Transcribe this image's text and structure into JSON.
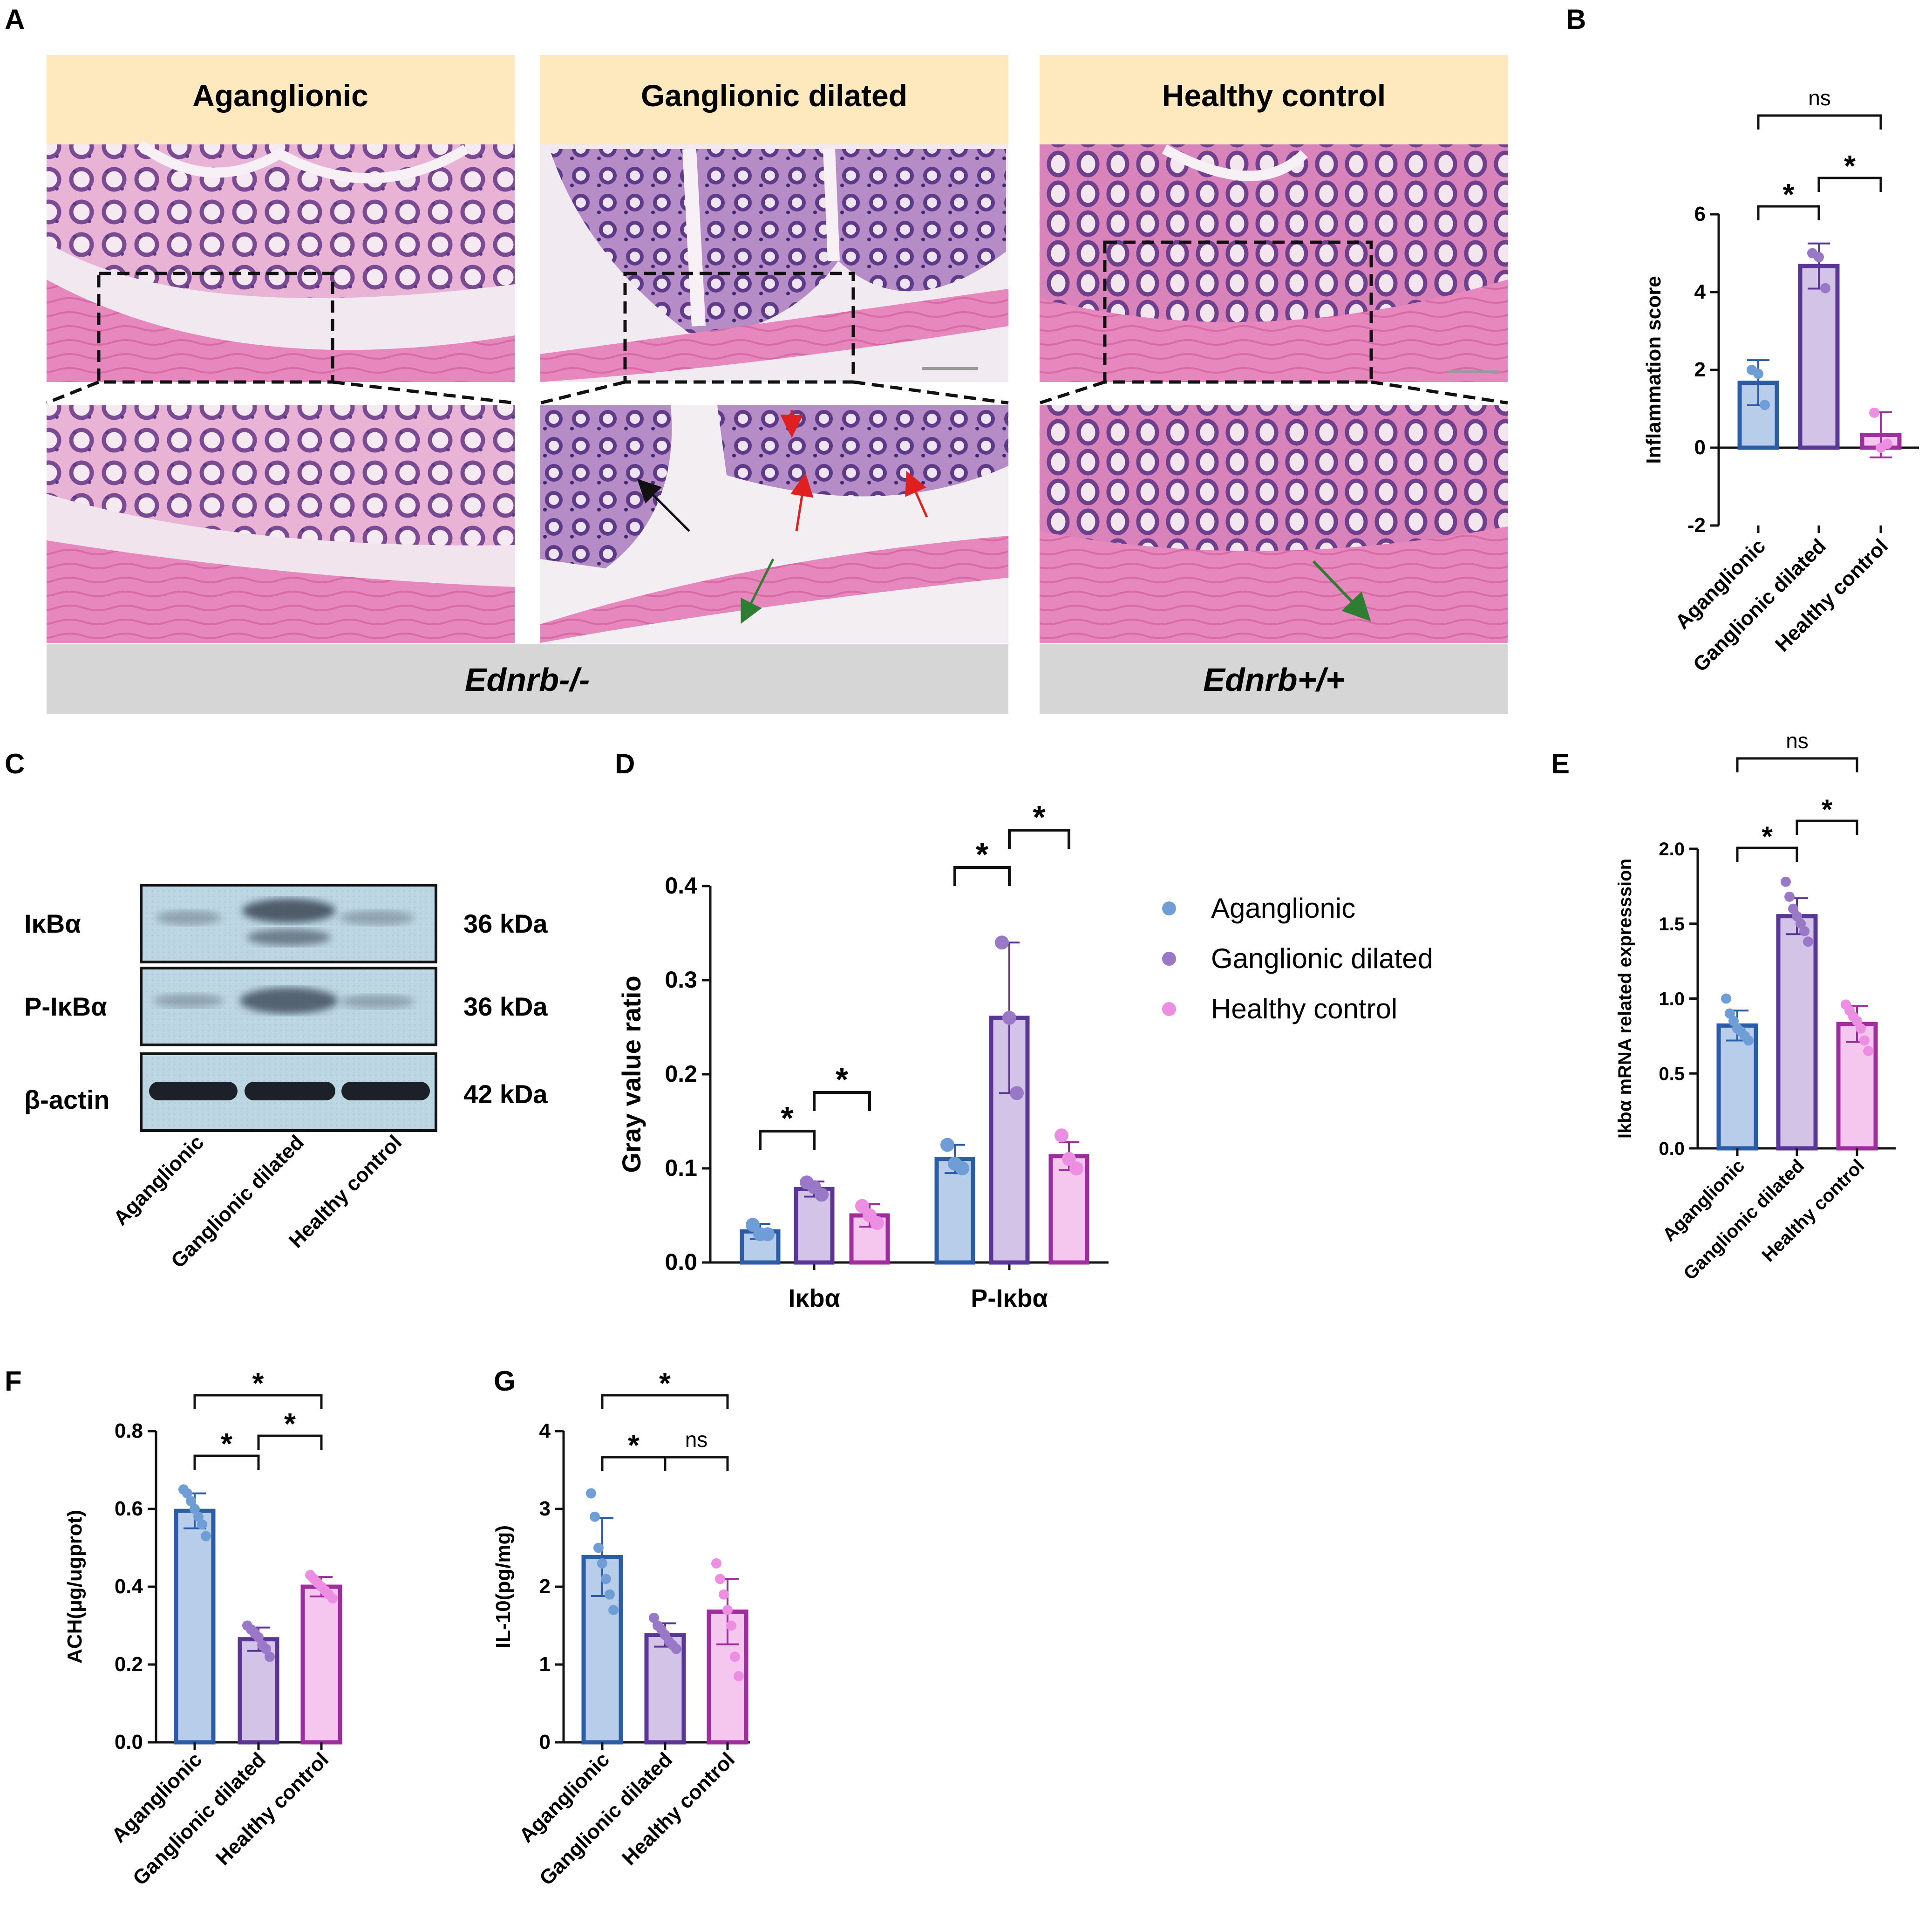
{
  "panels": {
    "A": "A",
    "B": "B",
    "C": "C",
    "D": "D",
    "E": "E",
    "F": "F",
    "G": "G"
  },
  "histology": {
    "headers": [
      "Aganglionic",
      "Ganglionic dilated",
      "Healthy control"
    ],
    "footers": [
      "Ednrb-/-",
      "Ednrb+/+"
    ],
    "colors": {
      "tissue_pink": "#e37fb4",
      "tissue_purple": "#8a5a9e",
      "lumen": "#f4eef2",
      "red_arrow": "#e02020",
      "green_arrow": "#2e7d32",
      "black_arrow": "#111111"
    }
  },
  "western_blot": {
    "rows": [
      {
        "label": "IκBα",
        "kda": "36 kDa"
      },
      {
        "label": "P-IκBα",
        "kda": "36 kDa"
      },
      {
        "label": "β-actin",
        "kda": "42 kDa"
      }
    ],
    "lanes": [
      "Aganglionic",
      "Ganglionic dilated",
      "Healthy control"
    ],
    "blot_bg": "#b9d4e0"
  },
  "legend": {
    "items": [
      {
        "name": "Aganglionic",
        "color": "#6f9ed6"
      },
      {
        "name": "Ganglionic dilated",
        "color": "#9a78c8"
      },
      {
        "name": "Healthy control",
        "color": "#ec8fe3"
      }
    ]
  },
  "colors": {
    "agang_fill": "#b8cde9",
    "agang_edge": "#2a5ca8",
    "agang_dot": "#6f9ed6",
    "gang_fill": "#d2c3e7",
    "gang_edge": "#5a3696",
    "gang_dot": "#9a78c8",
    "healthy_fill": "#f5c7ef",
    "healthy_edge": "#a02d9e",
    "healthy_dot": "#ec8fe3"
  },
  "chart_data": [
    {
      "panel": "B",
      "type": "bar",
      "categories": [
        "Aganglionic",
        "Ganglionic dilated",
        "Healthy control"
      ],
      "values": [
        1.67,
        4.67,
        0.33
      ],
      "errors": [
        0.58,
        0.58,
        0.58
      ],
      "points": [
        [
          2,
          1.9,
          1.1
        ],
        [
          5.0,
          4.9,
          4.1
        ],
        [
          0.9,
          0.0,
          0.1
        ]
      ],
      "ylabel": "Inflammation score",
      "ylim": [
        -2,
        6
      ],
      "yticks": [
        "-2",
        "0",
        "2",
        "4",
        "6"
      ],
      "significance": [
        {
          "from": 0,
          "to": 1,
          "label": "*"
        },
        {
          "from": 1,
          "to": 2,
          "label": "*"
        },
        {
          "from": 0,
          "to": 2,
          "label": "ns"
        }
      ]
    },
    {
      "panel": "D",
      "type": "bar",
      "groups": [
        "Iκbα",
        "P-Iκbα"
      ],
      "series": [
        {
          "name": "Aganglionic",
          "values": [
            0.033,
            0.11
          ],
          "errors": [
            0.008,
            0.015
          ],
          "points": [
            [
              0.04,
              0.03,
              0.03
            ],
            [
              0.125,
              0.105,
              0.1
            ]
          ]
        },
        {
          "name": "Ganglionic dilated",
          "values": [
            0.078,
            0.26
          ],
          "errors": [
            0.008,
            0.08
          ],
          "points": [
            [
              0.085,
              0.08,
              0.072
            ],
            [
              0.34,
              0.26,
              0.18
            ]
          ]
        },
        {
          "name": "Healthy control",
          "values": [
            0.05,
            0.113
          ],
          "errors": [
            0.012,
            0.015
          ],
          "points": [
            [
              0.06,
              0.05,
              0.042
            ],
            [
              0.135,
              0.11,
              0.1
            ]
          ]
        }
      ],
      "ylabel": "Gray value ratio",
      "ylim": [
        0,
        0.4
      ],
      "yticks": [
        "0.0",
        "0.1",
        "0.2",
        "0.3",
        "0.4"
      ],
      "significance": [
        {
          "group": 0,
          "from": 0,
          "to": 1,
          "label": "*"
        },
        {
          "group": 0,
          "from": 1,
          "to": 2,
          "label": "*"
        },
        {
          "group": 1,
          "from": 0,
          "to": 1,
          "label": "*"
        },
        {
          "group": 1,
          "from": 1,
          "to": 2,
          "label": "*"
        }
      ]
    },
    {
      "panel": "E",
      "type": "bar",
      "categories": [
        "Aganglionic",
        "Ganglionic dilated",
        "Healthy control"
      ],
      "values": [
        0.82,
        1.55,
        0.83
      ],
      "errors": [
        0.1,
        0.12,
        0.12
      ],
      "points": [
        [
          1.0,
          0.9,
          0.85,
          0.8,
          0.78,
          0.75,
          0.72
        ],
        [
          1.78,
          1.68,
          1.6,
          1.55,
          1.5,
          1.45,
          1.38
        ],
        [
          0.96,
          0.92,
          0.88,
          0.85,
          0.8,
          0.72,
          0.65
        ]
      ],
      "ylabel": "Ikbα mRNA related expresssion",
      "ylim": [
        0,
        2.0
      ],
      "yticks": [
        "0.0",
        "0.5",
        "1.0",
        "1.5",
        "2.0"
      ],
      "significance": [
        {
          "from": 0,
          "to": 1,
          "label": "*"
        },
        {
          "from": 1,
          "to": 2,
          "label": "*"
        },
        {
          "from": 0,
          "to": 2,
          "label": "ns"
        }
      ]
    },
    {
      "panel": "F",
      "type": "bar",
      "categories": [
        "Aganglionic",
        "Ganglionic dilated",
        "Healthy control"
      ],
      "values": [
        0.595,
        0.265,
        0.4
      ],
      "errors": [
        0.045,
        0.03,
        0.025
      ],
      "points": [
        [
          0.65,
          0.64,
          0.62,
          0.6,
          0.58,
          0.56,
          0.53
        ],
        [
          0.3,
          0.29,
          0.28,
          0.27,
          0.25,
          0.24,
          0.22
        ],
        [
          0.43,
          0.42,
          0.41,
          0.4,
          0.39,
          0.38,
          0.37
        ]
      ],
      "ylabel": "ACH(μg/ugprot)",
      "ylim": [
        0,
        0.8
      ],
      "yticks": [
        "0.0",
        "0.2",
        "0.4",
        "0.6",
        "0.8"
      ],
      "significance": [
        {
          "from": 0,
          "to": 1,
          "label": "*"
        },
        {
          "from": 1,
          "to": 2,
          "label": "*"
        },
        {
          "from": 0,
          "to": 2,
          "label": "*"
        }
      ]
    },
    {
      "panel": "G",
      "type": "bar",
      "categories": [
        "Aganglionic",
        "Ganglionic dilated",
        "Healthy control"
      ],
      "values": [
        2.38,
        1.38,
        1.68
      ],
      "errors": [
        0.5,
        0.15,
        0.42
      ],
      "points": [
        [
          3.2,
          2.9,
          2.5,
          2.3,
          2.1,
          1.9,
          1.7
        ],
        [
          1.6,
          1.5,
          1.45,
          1.38,
          1.3,
          1.25,
          1.2
        ],
        [
          2.3,
          2.1,
          1.9,
          1.7,
          1.5,
          1.1,
          0.85
        ]
      ],
      "ylabel": "IL-10(pg/mg)",
      "ylim": [
        0,
        4
      ],
      "yticks": [
        "0",
        "1",
        "2",
        "3",
        "4"
      ],
      "significance": [
        {
          "from": 0,
          "to": 1,
          "label": "*"
        },
        {
          "from": 1,
          "to": 2,
          "label": "ns"
        },
        {
          "from": 0,
          "to": 2,
          "label": "*"
        }
      ]
    }
  ]
}
